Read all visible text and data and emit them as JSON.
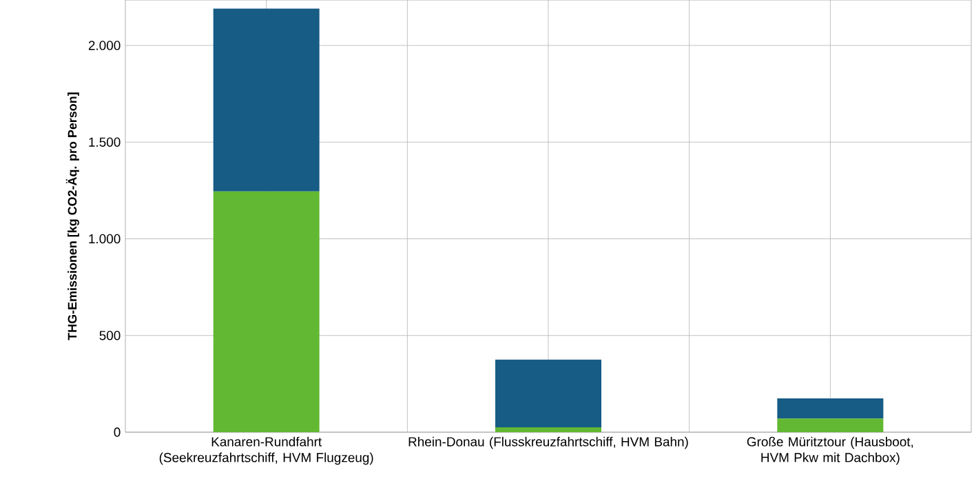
{
  "chart_data": {
    "type": "bar",
    "stacked": true,
    "ylabel": "THG-Emissionen [kg CO2-Äq. pro Person]",
    "categories": [
      "Kanaren-Rundfahrt (Seekreuzfahrtschiff, HVM Flugzeug)",
      "Rhein-Donau (Flusskreuzfahrtschiff, HVM Bahn)",
      "Große Müritztour (Hausboot, HVM Pkw mit Dachbox)"
    ],
    "series": [
      {
        "color": "#62b832",
        "values": [
          1245,
          25,
          70
        ]
      },
      {
        "color": "#165c85",
        "values": [
          945,
          350,
          105
        ]
      }
    ],
    "ylim": [
      0,
      2235
    ],
    "yticks": [
      0,
      {
        "value": 500,
        "label": "500"
      },
      {
        "value": 1000,
        "label": "1.000"
      },
      {
        "value": 1500,
        "label": "1.500"
      },
      {
        "value": 2000,
        "label": "2.000"
      }
    ],
    "grid": true
  }
}
